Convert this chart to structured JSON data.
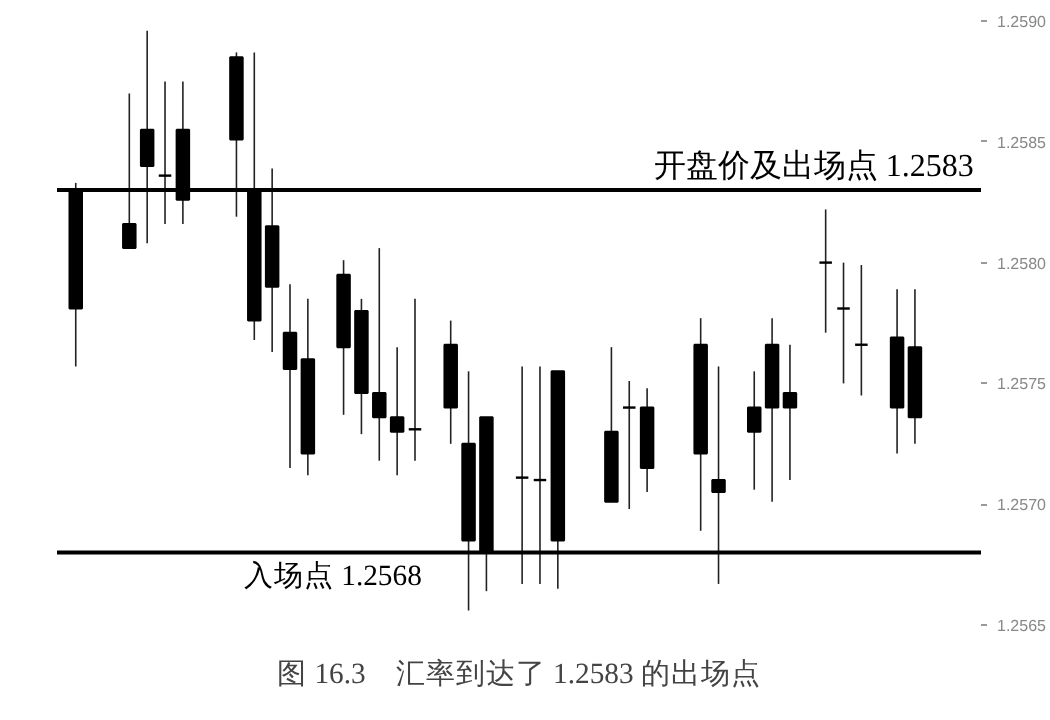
{
  "chart_data": {
    "type": "candlestick",
    "title": "图 16.3　汇率到达了 1.2583 的出场点",
    "categories": [
      null,
      null,
      null,
      null,
      null,
      null,
      null,
      null,
      null,
      null,
      null,
      null,
      null,
      null,
      null,
      null,
      null,
      null,
      null,
      null,
      null,
      null,
      null,
      null,
      null,
      null,
      null,
      null,
      null,
      null,
      null,
      null,
      null,
      null,
      null,
      null,
      null,
      null,
      null,
      null,
      null,
      null,
      null,
      null,
      null,
      null,
      null,
      null
    ],
    "ohlc": [
      [
        1.2583,
        1.25833,
        1.25757,
        1.25781
      ],
      null,
      null,
      [
        1.25816,
        1.2587,
        1.25806,
        1.25806
      ],
      [
        1.25855,
        1.25896,
        1.25808,
        1.2584
      ],
      [
        1.25836,
        1.25875,
        1.25816,
        1.25836
      ],
      [
        1.25855,
        1.25875,
        1.25816,
        1.25826
      ],
      null,
      null,
      [
        1.25885,
        1.25887,
        1.25819,
        1.25851
      ],
      [
        1.2583,
        1.25887,
        1.25768,
        1.25776
      ],
      [
        1.25815,
        1.25839,
        1.25763,
        1.2579
      ],
      [
        1.25771,
        1.25791,
        1.25715,
        1.25756
      ],
      [
        1.2576,
        1.25785,
        1.25712,
        1.25721
      ],
      null,
      [
        1.25795,
        1.25801,
        1.25737,
        1.25765
      ],
      [
        1.2578,
        1.25785,
        1.25729,
        1.25746
      ],
      [
        1.25746,
        1.25806,
        1.25718,
        1.25736
      ],
      [
        1.25736,
        1.25765,
        1.25712,
        1.2573
      ],
      [
        1.25731,
        1.25785,
        1.25718,
        1.25731
      ],
      null,
      [
        1.25766,
        1.25776,
        1.25725,
        1.2574
      ],
      [
        1.25725,
        1.25755,
        1.25656,
        1.25685
      ],
      [
        1.25736,
        1.25736,
        1.25664,
        1.2568
      ],
      null,
      [
        1.25711,
        1.25757,
        1.25667,
        1.25711
      ],
      [
        1.2571,
        1.25757,
        1.25667,
        1.2571
      ],
      [
        1.25755,
        1.25755,
        1.25665,
        1.25685
      ],
      null,
      null,
      [
        1.2573,
        1.25765,
        1.25701,
        1.25701
      ],
      [
        1.2574,
        1.25751,
        1.25698,
        1.2574
      ],
      [
        1.2574,
        1.25748,
        1.25705,
        1.25715
      ],
      null,
      null,
      [
        1.25766,
        1.25777,
        1.25689,
        1.25721
      ],
      [
        1.2571,
        1.25757,
        1.25667,
        1.25705
      ],
      null,
      [
        1.2574,
        1.25755,
        1.25706,
        1.2573
      ],
      [
        1.25766,
        1.25777,
        1.25701,
        1.2574
      ],
      [
        1.25746,
        1.25766,
        1.2571,
        1.2574
      ],
      null,
      [
        1.258,
        1.25822,
        1.25771,
        1.258
      ],
      [
        1.25781,
        1.258,
        1.2575,
        1.25781
      ],
      [
        1.25766,
        1.25799,
        1.25745,
        1.25766
      ],
      null,
      [
        1.25769,
        1.25789,
        1.25721,
        1.2574
      ],
      [
        1.25765,
        1.25789,
        1.25725,
        1.25736
      ]
    ],
    "ylim": [
      1.2565,
      1.259
    ],
    "yticks": [
      {
        "value": 1.2565,
        "label": "1.2565"
      },
      {
        "value": 1.257,
        "label": "1.2570"
      },
      {
        "value": 1.2575,
        "label": "1.2575"
      },
      {
        "value": 1.258,
        "label": "1.2580"
      },
      {
        "value": 1.2585,
        "label": "1.2585"
      },
      {
        "value": 1.259,
        "label": "1.2590"
      }
    ],
    "ref_lines": [
      {
        "axis": "y",
        "value": 1.2583,
        "label": "开盘价及出场点 1.2583",
        "color": "#000000"
      },
      {
        "axis": "y",
        "value": 1.2568,
        "label": "入场点 1.2568",
        "color": "#000000"
      }
    ],
    "tick_labels": "y",
    "grid": false
  }
}
